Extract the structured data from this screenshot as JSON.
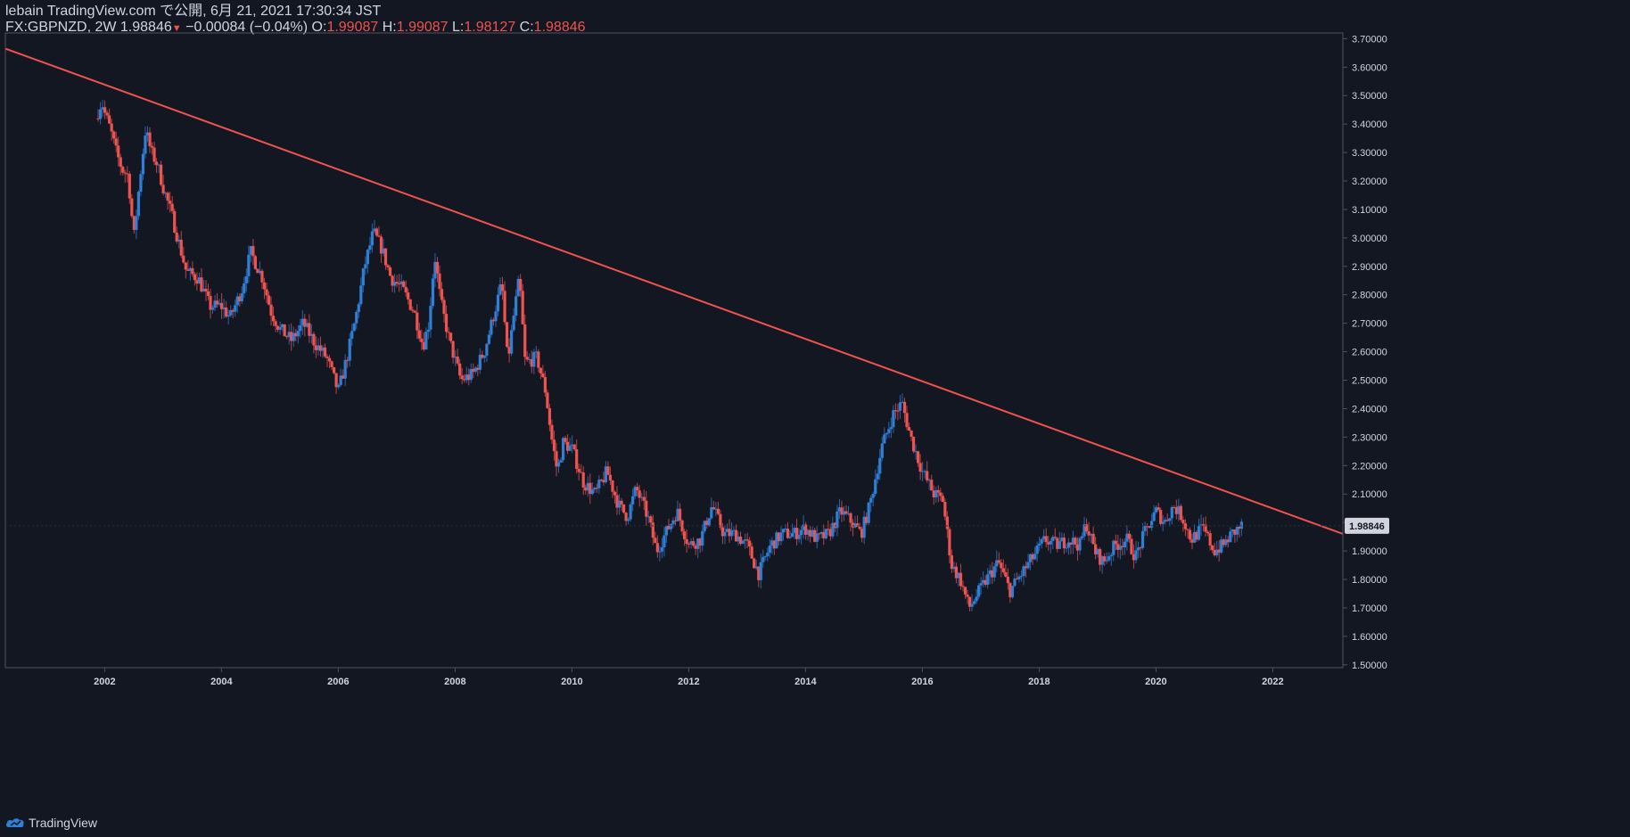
{
  "header": {
    "published": "lebain TradingView.com で公開, 6月 21, 2021 17:30:34 JST",
    "symbol": "FX:GBPNZD, 2W",
    "last": "1.98846",
    "arrow": "▼",
    "change": "−0.00084 (−0.04%)",
    "o_label": "O:",
    "o_value": "1.99087",
    "h_label": "H:",
    "h_value": "1.99087",
    "l_label": "L:",
    "l_value": "1.98127",
    "c_label": "C:",
    "c_value": "1.98846"
  },
  "footer": {
    "brand": "TradingView",
    "logo_icon": "tradingview-logo-icon"
  },
  "colors": {
    "background": "#131722",
    "up": "#2f7fd8",
    "down": "#ef5350",
    "trendline": "#ef5350",
    "axis_text": "#d1d4dc",
    "axis_line": "#50535e",
    "price_tag_bg": "#d1d4dc",
    "price_tag_text": "#131722"
  },
  "chart_data": {
    "type": "candlestick",
    "symbol": "FX:GBPNZD",
    "interval": "2W",
    "xlim": [
      2000.3,
      2023.2
    ],
    "ylim": [
      1.49,
      3.72
    ],
    "x_ticks": [
      "2002",
      "2004",
      "2006",
      "2008",
      "2010",
      "2012",
      "2014",
      "2016",
      "2018",
      "2020",
      "2022"
    ],
    "y_ticks": [
      "1.50000",
      "1.60000",
      "1.70000",
      "1.80000",
      "1.90000",
      "2.00000",
      "2.10000",
      "2.20000",
      "2.30000",
      "2.40000",
      "2.50000",
      "2.60000",
      "2.70000",
      "2.80000",
      "2.90000",
      "3.00000",
      "3.10000",
      "3.20000",
      "3.30000",
      "3.40000",
      "3.50000",
      "3.60000",
      "3.70000"
    ],
    "last_price": "1.98846",
    "last_price_value": 1.98846,
    "trendline": {
      "x1": 2000.3,
      "y1": 3.665,
      "x2": 2023.2,
      "y2": 1.96
    },
    "series": [
      [
        2001.85,
        3.42
      ],
      [
        2001.95,
        3.48
      ],
      [
        2002.0,
        3.44
      ],
      [
        2002.1,
        3.38
      ],
      [
        2002.2,
        3.3
      ],
      [
        2002.3,
        3.24
      ],
      [
        2002.4,
        3.22
      ],
      [
        2002.5,
        3.0
      ],
      [
        2002.6,
        3.2
      ],
      [
        2002.7,
        3.38
      ],
      [
        2002.8,
        3.3
      ],
      [
        2002.9,
        3.26
      ],
      [
        2003.0,
        3.18
      ],
      [
        2003.15,
        3.08
      ],
      [
        2003.3,
        2.96
      ],
      [
        2003.4,
        2.88
      ],
      [
        2003.6,
        2.86
      ],
      [
        2003.8,
        2.76
      ],
      [
        2004.0,
        2.76
      ],
      [
        2004.15,
        2.72
      ],
      [
        2004.35,
        2.82
      ],
      [
        2004.5,
        2.95
      ],
      [
        2004.7,
        2.86
      ],
      [
        2004.85,
        2.74
      ],
      [
        2005.0,
        2.68
      ],
      [
        2005.2,
        2.64
      ],
      [
        2005.4,
        2.7
      ],
      [
        2005.6,
        2.63
      ],
      [
        2005.8,
        2.58
      ],
      [
        2006.0,
        2.46
      ],
      [
        2006.15,
        2.58
      ],
      [
        2006.3,
        2.72
      ],
      [
        2006.45,
        2.9
      ],
      [
        2006.6,
        3.02
      ],
      [
        2006.75,
        2.96
      ],
      [
        2006.9,
        2.86
      ],
      [
        2007.1,
        2.82
      ],
      [
        2007.3,
        2.74
      ],
      [
        2007.45,
        2.62
      ],
      [
        2007.55,
        2.7
      ],
      [
        2007.65,
        2.94
      ],
      [
        2007.75,
        2.78
      ],
      [
        2007.9,
        2.64
      ],
      [
        2008.1,
        2.5
      ],
      [
        2008.3,
        2.52
      ],
      [
        2008.5,
        2.6
      ],
      [
        2008.65,
        2.72
      ],
      [
        2008.8,
        2.84
      ],
      [
        2008.9,
        2.56
      ],
      [
        2009.0,
        2.72
      ],
      [
        2009.1,
        2.86
      ],
      [
        2009.2,
        2.56
      ],
      [
        2009.4,
        2.58
      ],
      [
        2009.55,
        2.46
      ],
      [
        2009.65,
        2.3
      ],
      [
        2009.75,
        2.18
      ],
      [
        2009.85,
        2.28
      ],
      [
        2010.0,
        2.26
      ],
      [
        2010.2,
        2.14
      ],
      [
        2010.4,
        2.1
      ],
      [
        2010.6,
        2.18
      ],
      [
        2010.8,
        2.06
      ],
      [
        2010.95,
        2.02
      ],
      [
        2011.1,
        2.12
      ],
      [
        2011.3,
        2.02
      ],
      [
        2011.45,
        1.9
      ],
      [
        2011.6,
        1.96
      ],
      [
        2011.8,
        2.04
      ],
      [
        2012.0,
        1.92
      ],
      [
        2012.2,
        1.94
      ],
      [
        2012.4,
        2.06
      ],
      [
        2012.6,
        1.96
      ],
      [
        2012.8,
        1.96
      ],
      [
        2013.0,
        1.92
      ],
      [
        2013.2,
        1.82
      ],
      [
        2013.4,
        1.92
      ],
      [
        2013.6,
        1.96
      ],
      [
        2013.8,
        1.96
      ],
      [
        2014.0,
        1.98
      ],
      [
        2014.2,
        1.94
      ],
      [
        2014.4,
        1.96
      ],
      [
        2014.6,
        2.04
      ],
      [
        2014.8,
        2.0
      ],
      [
        2014.95,
        1.96
      ],
      [
        2015.1,
        2.06
      ],
      [
        2015.3,
        2.26
      ],
      [
        2015.5,
        2.38
      ],
      [
        2015.65,
        2.42
      ],
      [
        2015.8,
        2.3
      ],
      [
        2016.0,
        2.18
      ],
      [
        2016.2,
        2.1
      ],
      [
        2016.35,
        2.08
      ],
      [
        2016.5,
        1.85
      ],
      [
        2016.65,
        1.8
      ],
      [
        2016.8,
        1.7
      ],
      [
        2016.95,
        1.75
      ],
      [
        2017.1,
        1.8
      ],
      [
        2017.3,
        1.86
      ],
      [
        2017.5,
        1.76
      ],
      [
        2017.7,
        1.82
      ],
      [
        2017.9,
        1.88
      ],
      [
        2018.1,
        1.94
      ],
      [
        2018.3,
        1.92
      ],
      [
        2018.5,
        1.94
      ],
      [
        2018.7,
        1.92
      ],
      [
        2018.8,
        2.0
      ],
      [
        2018.95,
        1.9
      ],
      [
        2019.1,
        1.86
      ],
      [
        2019.3,
        1.92
      ],
      [
        2019.5,
        1.94
      ],
      [
        2019.65,
        1.88
      ],
      [
        2019.8,
        1.96
      ],
      [
        2020.0,
        2.04
      ],
      [
        2020.15,
        2.0
      ],
      [
        2020.3,
        2.06
      ],
      [
        2020.45,
        2.02
      ],
      [
        2020.6,
        1.94
      ],
      [
        2020.8,
        1.98
      ],
      [
        2021.0,
        1.9
      ],
      [
        2021.15,
        1.92
      ],
      [
        2021.3,
        1.96
      ],
      [
        2021.47,
        1.988
      ]
    ]
  }
}
